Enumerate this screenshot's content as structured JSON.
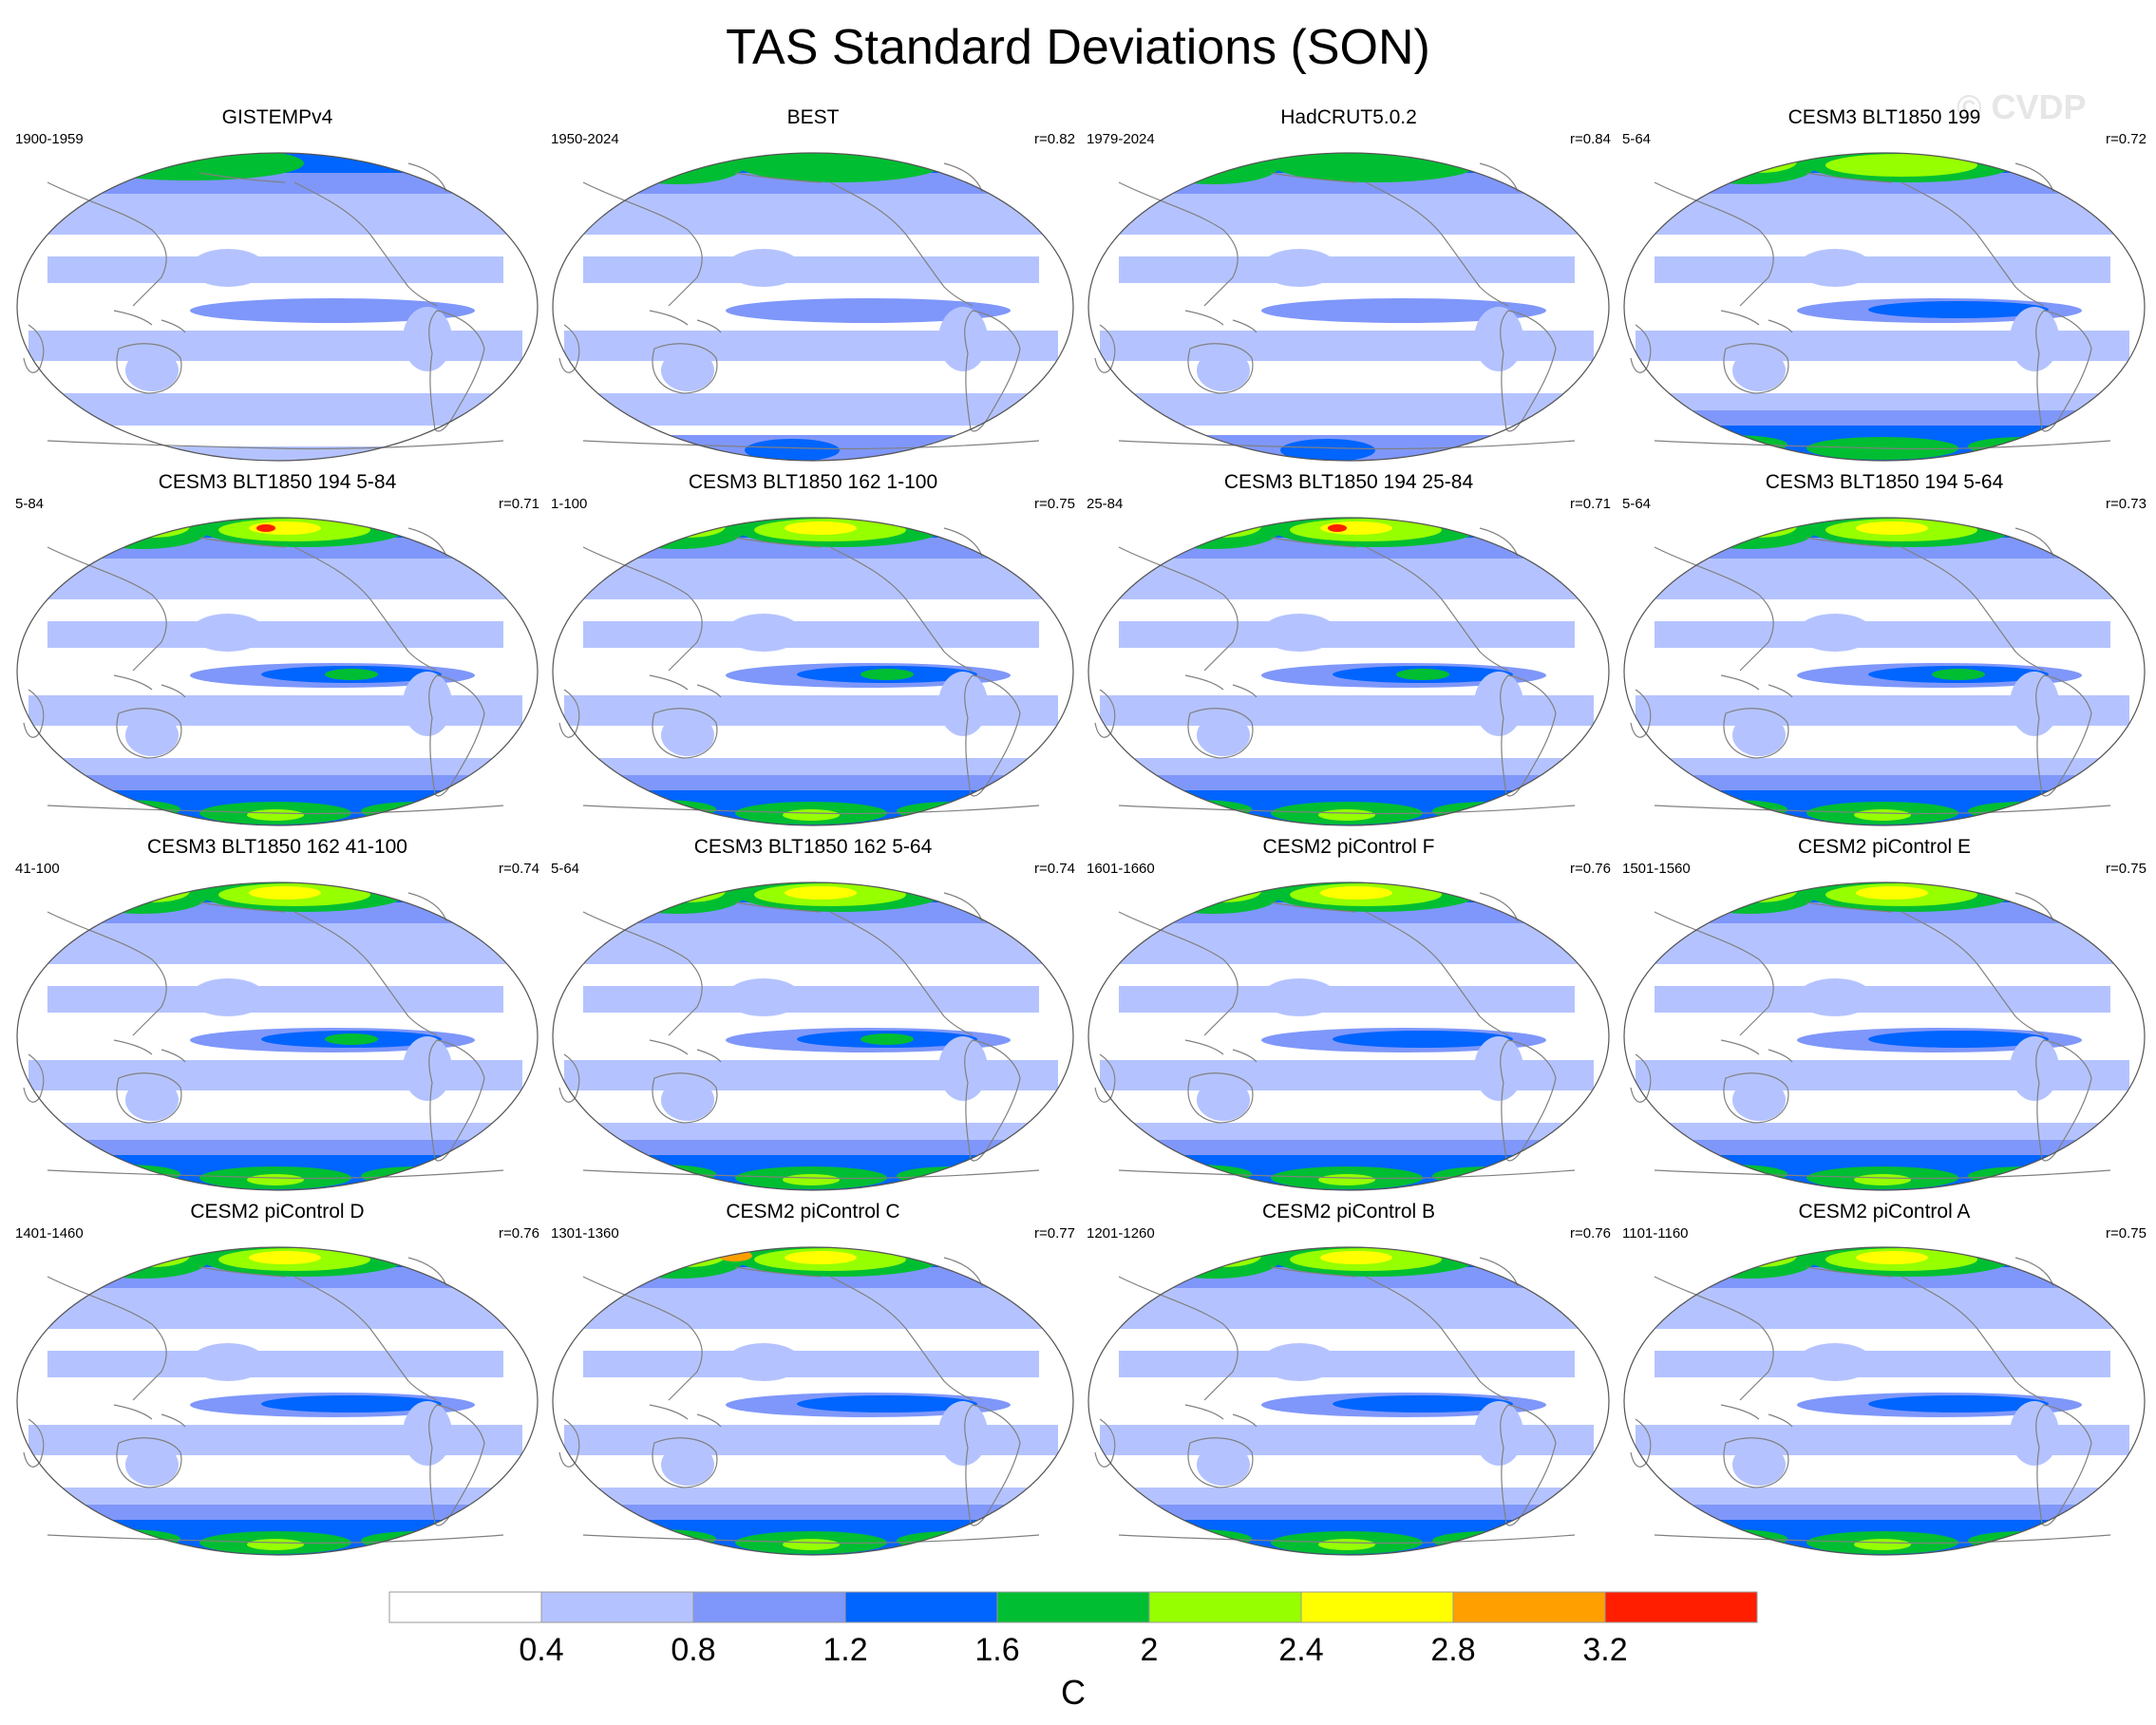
{
  "title": "TAS Standard Deviations (SON)",
  "watermark": "© CVDP",
  "panels": [
    {
      "title": "GISTEMPv4",
      "years": "1900-1959",
      "corr": ""
    },
    {
      "title": "BEST",
      "years": "1950-2024",
      "corr": "r=0.82"
    },
    {
      "title": "HadCRUT5.0.2",
      "years": "1979-2024",
      "corr": "r=0.84"
    },
    {
      "title": "CESM3 BLT1850 199",
      "years": "5-64",
      "corr": "r=0.72"
    },
    {
      "title": "CESM3 BLT1850 194 5-84",
      "years": "5-84",
      "corr": "r=0.71"
    },
    {
      "title": "CESM3 BLT1850 162 1-100",
      "years": "1-100",
      "corr": "r=0.75"
    },
    {
      "title": "CESM3 BLT1850 194 25-84",
      "years": "25-84",
      "corr": "r=0.71"
    },
    {
      "title": "CESM3 BLT1850 194 5-64",
      "years": "5-64",
      "corr": "r=0.73"
    },
    {
      "title": "CESM3 BLT1850 162 41-100",
      "years": "41-100",
      "corr": "r=0.74"
    },
    {
      "title": "CESM3 BLT1850 162 5-64",
      "years": "5-64",
      "corr": "r=0.74"
    },
    {
      "title": "CESM2 piControl F",
      "years": "1601-1660",
      "corr": "r=0.76"
    },
    {
      "title": "CESM2 piControl E",
      "years": "1501-1560",
      "corr": "r=0.75"
    },
    {
      "title": "CESM2 piControl D",
      "years": "1401-1460",
      "corr": "r=0.76"
    },
    {
      "title": "CESM2 piControl C",
      "years": "1301-1360",
      "corr": "r=0.77"
    },
    {
      "title": "CESM2 piControl B",
      "years": "1201-1260",
      "corr": "r=0.76"
    },
    {
      "title": "CESM2 piControl A",
      "years": "1101-1160",
      "corr": "r=0.75"
    }
  ],
  "colorbar": {
    "colors": [
      "#ffffff",
      "#b4c3ff",
      "#7f97fa",
      "#0064ff",
      "#00be32",
      "#96ff00",
      "#ffff00",
      "#ff9f00",
      "#ff1e00"
    ],
    "ticks": [
      "0.4",
      "0.8",
      "1.2",
      "1.6",
      "2",
      "2.4",
      "2.8",
      "3.2"
    ],
    "unit": "C"
  },
  "land_outline_color": "#808080"
}
